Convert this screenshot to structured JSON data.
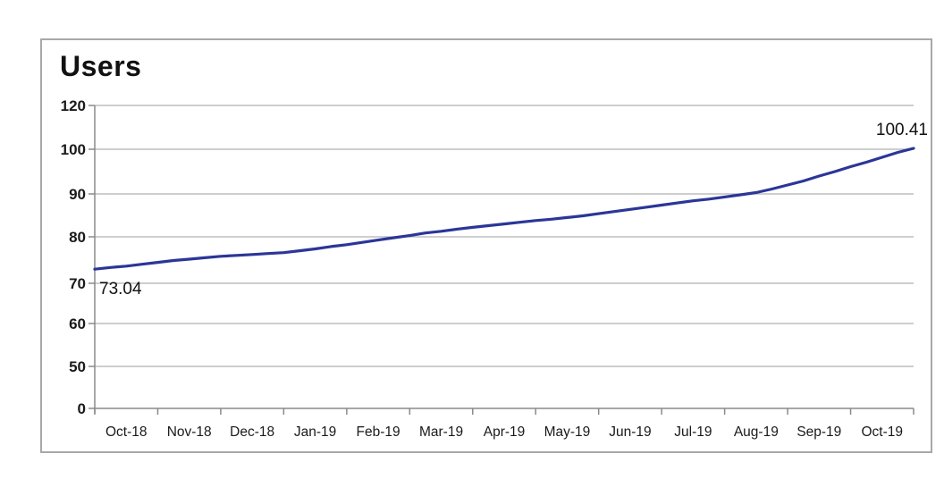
{
  "title": "Users",
  "annotations": {
    "start": "73.04",
    "end": "100.41"
  },
  "colors": {
    "line": "#2b3697",
    "grid": "#b1b1b1",
    "axis": "#8a8a8a",
    "frame": "#a8a8a8",
    "label": "#1a1a1a"
  },
  "chart_data": {
    "type": "line",
    "title": "Users",
    "legend": false,
    "grid": true,
    "x_tick_labels": [
      "Oct-18",
      "Nov-18",
      "Dec-18",
      "Jan-19",
      "Feb-19",
      "Mar-19",
      "Apr-19",
      "May-19",
      "Jun-19",
      "Jul-19",
      "Aug-19",
      "Sep-19",
      "Oct-19"
    ],
    "y_tick_labels": [
      120,
      100,
      90,
      80,
      70,
      60,
      50,
      0
    ],
    "y_axis_note": "ticks rendered with equal spacing (non-linear value axis as shown)",
    "data_labels": {
      "first": "73.04",
      "last": "100.41"
    },
    "series": [
      {
        "name": "Users",
        "sampling": "4 points per month, Oct-18 through Oct-19",
        "values": [
          73.04,
          73.4,
          73.7,
          74.1,
          74.5,
          74.9,
          75.2,
          75.5,
          75.8,
          76.0,
          76.2,
          76.4,
          76.6,
          77.0,
          77.4,
          77.9,
          78.3,
          78.8,
          79.3,
          79.8,
          80.3,
          80.9,
          81.3,
          81.8,
          82.2,
          82.6,
          83.0,
          83.4,
          83.8,
          84.1,
          84.5,
          84.9,
          85.4,
          85.9,
          86.4,
          86.9,
          87.4,
          87.9,
          88.4,
          88.8,
          89.3,
          89.8,
          90.3,
          91.1,
          92.0,
          92.9,
          94.0,
          95.0,
          96.1,
          97.1,
          98.2,
          99.3,
          100.41
        ]
      }
    ]
  }
}
